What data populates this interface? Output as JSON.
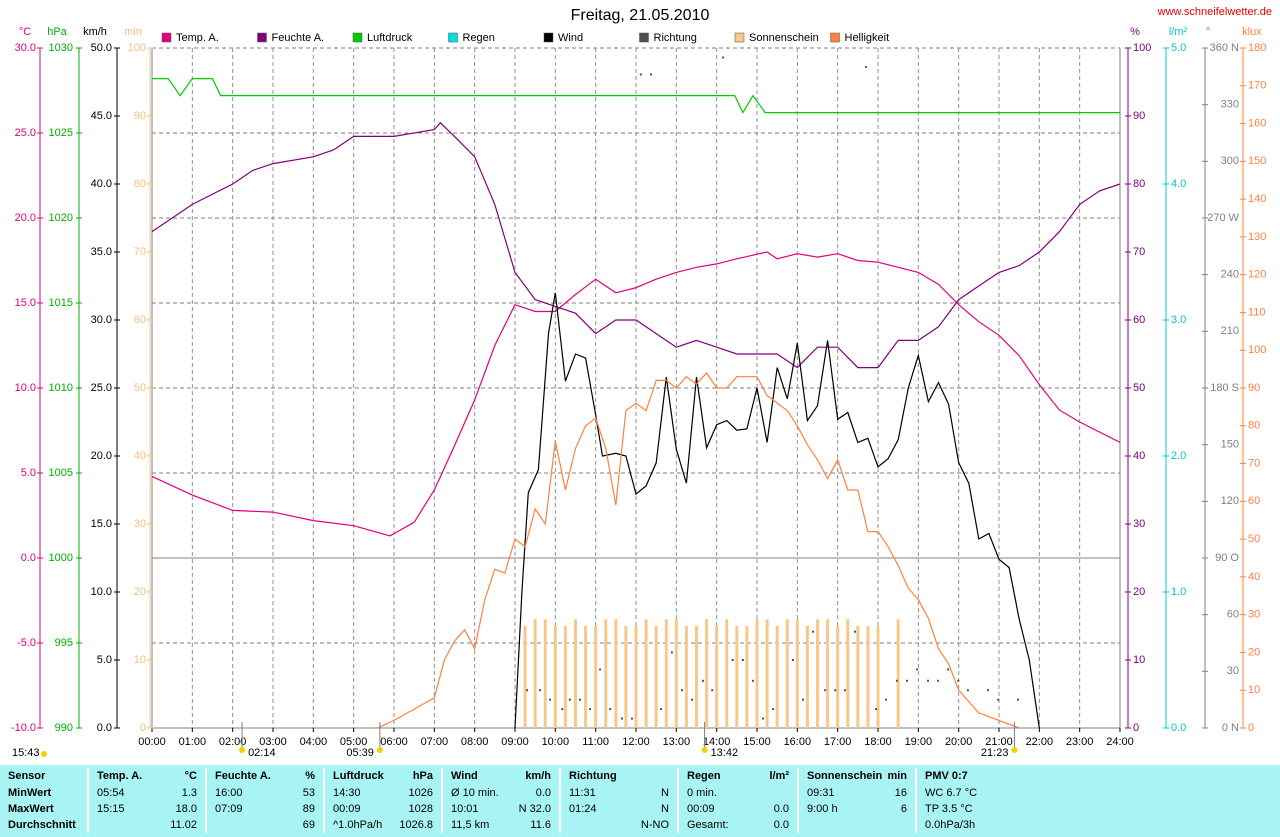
{
  "chart_data": {
    "type": "combo",
    "title": "Freitag, 21.05.2010",
    "source": "www.schneifelwetter.de",
    "xlim": [
      0,
      24
    ],
    "xticks": [
      {
        "value": 0,
        "label": "00:00"
      },
      {
        "value": 1,
        "label": "01:00"
      },
      {
        "value": 2,
        "label": "02:00"
      },
      {
        "value": 3,
        "label": "03:00"
      },
      {
        "value": 4,
        "label": "04:00"
      },
      {
        "value": 5,
        "label": "05:00"
      },
      {
        "value": 6,
        "label": "06:00"
      },
      {
        "value": 7,
        "label": "07:00"
      },
      {
        "value": 8,
        "label": "08:00"
      },
      {
        "value": 9,
        "label": "09:00"
      },
      {
        "value": 10,
        "label": "10:00"
      },
      {
        "value": 11,
        "label": "11:00"
      },
      {
        "value": 12,
        "label": "12:00"
      },
      {
        "value": 13,
        "label": "13:00"
      },
      {
        "value": 14,
        "label": "14:00"
      },
      {
        "value": 15,
        "label": "15:00"
      },
      {
        "value": 16,
        "label": "16:00"
      },
      {
        "value": 17,
        "label": "17:00"
      },
      {
        "value": 18,
        "label": "18:00"
      },
      {
        "value": 19,
        "label": "19:00"
      },
      {
        "value": 20,
        "label": "20:00"
      },
      {
        "value": 21,
        "label": "21:00"
      },
      {
        "value": 22,
        "label": "22:00"
      },
      {
        "value": 23,
        "label": "23:00"
      },
      {
        "value": 24,
        "label": "24:00"
      }
    ],
    "grid": true,
    "grid_axis": "temp",
    "axes": {
      "temp": {
        "label": "°C",
        "color": "#e0007f",
        "lim": [
          -10,
          30
        ],
        "ticks": [
          {
            "value": -10,
            "label": "-10.0"
          },
          {
            "value": -5,
            "label": "-5.0"
          },
          {
            "value": 0,
            "label": "0.0"
          },
          {
            "value": 5,
            "label": "5.0"
          },
          {
            "value": 10,
            "label": "10.0"
          },
          {
            "value": 15,
            "label": "15.0"
          },
          {
            "value": 20,
            "label": "20.0"
          },
          {
            "value": 25,
            "label": "25.0"
          },
          {
            "value": 30,
            "label": "30.0"
          }
        ]
      },
      "hpa": {
        "label": "hPa",
        "color": "#00b000",
        "lim": [
          990,
          1030
        ],
        "ticks": [
          990,
          995,
          1000,
          1005,
          1010,
          1015,
          1020,
          1025,
          1030
        ]
      },
      "wind": {
        "label": "km/h",
        "color": "#000000",
        "lim": [
          0,
          50
        ],
        "ticks": [
          {
            "value": 0,
            "label": "0.0"
          },
          {
            "value": 5,
            "label": "5.0"
          },
          {
            "value": 10,
            "label": "10.0"
          },
          {
            "value": 15,
            "label": "15.0"
          },
          {
            "value": 20,
            "label": "20.0"
          },
          {
            "value": 25,
            "label": "25.0"
          },
          {
            "value": 30,
            "label": "30.0"
          },
          {
            "value": 35,
            "label": "35.0"
          },
          {
            "value": 40,
            "label": "40.0"
          },
          {
            "value": 45,
            "label": "45.0"
          },
          {
            "value": 50,
            "label": "50.0"
          }
        ]
      },
      "min": {
        "label": "min",
        "color": "#f0c080",
        "lim": [
          0,
          100
        ],
        "ticks": [
          0,
          10,
          20,
          30,
          40,
          50,
          60,
          70,
          80,
          90,
          100
        ]
      },
      "hum": {
        "label": "%",
        "color": "#800080",
        "lim": [
          0,
          100
        ],
        "ticks": [
          0,
          10,
          20,
          30,
          40,
          50,
          60,
          70,
          80,
          90,
          100
        ]
      },
      "rain": {
        "label": "l/m²",
        "color": "#00c8c8",
        "lim": [
          0,
          5
        ],
        "ticks": [
          {
            "value": 0,
            "label": "0.0"
          },
          {
            "value": 1,
            "label": "1.0"
          },
          {
            "value": 2,
            "label": "2.0"
          },
          {
            "value": 3,
            "label": "3.0"
          },
          {
            "value": 4,
            "label": "4.0"
          },
          {
            "value": 5,
            "label": "5.0"
          }
        ]
      },
      "dir": {
        "label": "°",
        "color": "#808080",
        "lim": [
          0,
          360
        ],
        "ticks": [
          {
            "value": 0,
            "label": "0 N"
          },
          30,
          60,
          {
            "value": 90,
            "label": "90 O"
          },
          120,
          150,
          {
            "value": 180,
            "label": "180 S"
          },
          210,
          240,
          {
            "value": 270,
            "label": "270 W"
          },
          300,
          330,
          {
            "value": 360,
            "label": "360 N"
          }
        ]
      },
      "lux": {
        "label": "klux",
        "color": "#ff8040",
        "lim": [
          0,
          180
        ],
        "ticks": [
          0,
          10,
          20,
          30,
          40,
          50,
          60,
          70,
          80,
          90,
          100,
          110,
          120,
          130,
          140,
          150,
          160,
          170,
          180
        ]
      }
    },
    "series": [
      {
        "name": "Temp. A.",
        "type": "line",
        "axis": "temp",
        "color": "#e0007f",
        "x": [
          0,
          1,
          2,
          3,
          4,
          5,
          5.9,
          6.5,
          7,
          7.5,
          8,
          8.5,
          9,
          9.5,
          10,
          10.5,
          11,
          11.5,
          12,
          12.5,
          13,
          13.5,
          14,
          14.5,
          15.25,
          15.5,
          16,
          16.5,
          17,
          17.5,
          18,
          18.5,
          19,
          19.5,
          20,
          20.5,
          21,
          21.5,
          22,
          22.5,
          23,
          24
        ],
        "values": [
          4.8,
          3.7,
          2.8,
          2.7,
          2.2,
          1.9,
          1.3,
          2.1,
          4.0,
          6.6,
          9.3,
          12.5,
          14.9,
          14.5,
          14.5,
          15.5,
          16.4,
          15.6,
          15.9,
          16.4,
          16.8,
          17.1,
          17.3,
          17.6,
          18.0,
          17.6,
          17.9,
          17.7,
          17.9,
          17.5,
          17.4,
          17.1,
          16.8,
          16.1,
          14.9,
          13.9,
          13.1,
          11.9,
          10.2,
          8.7,
          8.0,
          6.8
        ]
      },
      {
        "name": "Feuchte A.",
        "type": "line",
        "axis": "hum",
        "color": "#800080",
        "x": [
          0,
          0.5,
          1,
          2,
          2.5,
          3,
          4,
          4.5,
          5,
          6,
          7,
          7.15,
          7.5,
          8,
          8.5,
          9,
          9.5,
          10,
          10.5,
          11,
          11.5,
          12,
          12.5,
          13,
          13.5,
          14,
          14.5,
          15,
          15.5,
          16,
          16.5,
          17,
          17.5,
          18,
          18.5,
          19,
          19.5,
          20,
          20.5,
          21,
          21.5,
          22,
          22.5,
          23,
          23.5,
          24
        ],
        "values": [
          73,
          75,
          77,
          80,
          82,
          83,
          84,
          85,
          87,
          87,
          88,
          89,
          87,
          84,
          77,
          67,
          63,
          62,
          61,
          58,
          60,
          60,
          58,
          56,
          57,
          56,
          55,
          55,
          55,
          53,
          56,
          56,
          53,
          53,
          57,
          57,
          59,
          63,
          65,
          67,
          68,
          70,
          73,
          77,
          79,
          80
        ]
      },
      {
        "name": "Luftdruck",
        "type": "line",
        "axis": "hpa",
        "color": "#00cc00",
        "x": [
          0,
          0.4,
          0.7,
          1.0,
          1.5,
          1.7,
          14.45,
          14.65,
          14.9,
          15.2,
          24
        ],
        "values": [
          1028.2,
          1028.2,
          1027.2,
          1028.2,
          1028.2,
          1027.2,
          1027.2,
          1026.2,
          1027.2,
          1026.2,
          1026.2
        ]
      },
      {
        "name": "Regen",
        "type": "line",
        "axis": "rain",
        "color": "#00e0e0",
        "x": [],
        "values": []
      },
      {
        "name": "Wind",
        "type": "line",
        "axis": "wind",
        "color": "#000000",
        "x": [
          9,
          9.17,
          9.33,
          9.58,
          9.83,
          10,
          10.25,
          10.5,
          10.75,
          11,
          11.17,
          11.5,
          11.75,
          12,
          12.25,
          12.5,
          12.75,
          13,
          13.25,
          13.5,
          13.75,
          14,
          14.25,
          14.5,
          14.75,
          15,
          15.25,
          15.5,
          15.75,
          16,
          16.25,
          16.5,
          16.75,
          17,
          17.25,
          17.5,
          17.75,
          18,
          18.25,
          18.5,
          18.75,
          19,
          19.25,
          19.5,
          19.75,
          20,
          20.25,
          20.5,
          20.75,
          21,
          21.25,
          21.5,
          21.75,
          22
        ],
        "values": [
          0,
          10,
          17.3,
          19,
          29,
          32,
          25.5,
          27.5,
          27.2,
          23,
          20,
          20.2,
          20,
          17.2,
          17.8,
          19.5,
          25.8,
          20.5,
          18,
          25.8,
          20.6,
          22.3,
          22.6,
          21.9,
          22,
          25,
          21,
          26.5,
          24.2,
          28.3,
          22.6,
          23.7,
          28.5,
          22.7,
          23.2,
          21,
          21.3,
          19.2,
          19.8,
          21.2,
          25,
          27.4,
          24,
          25.4,
          23.8,
          19.5,
          18,
          13.9,
          14.3,
          12.4,
          11.8,
          8,
          5,
          0
        ]
      },
      {
        "name": "Richtung",
        "type": "scatter",
        "axis": "dir",
        "color": "#505050",
        "x": [
          9.3,
          9.62,
          9.87,
          10.17,
          10.36,
          10.61,
          10.86,
          11.11,
          11.36,
          11.65,
          11.9,
          12.12,
          12.37,
          12.62,
          12.89,
          13.14,
          13.39,
          13.66,
          13.89,
          14.16,
          14.4,
          14.65,
          14.9,
          15.15,
          15.4,
          15.89,
          16.14,
          16.39,
          16.69,
          16.94,
          17.18,
          17.43,
          17.7,
          17.95,
          18.2,
          18.47,
          18.72,
          18.97,
          19.24,
          19.49,
          19.74,
          19.99,
          20.23,
          20.73,
          20.98,
          21.47
        ],
        "values": [
          20,
          20,
          15,
          10,
          15,
          15,
          10,
          31,
          10,
          5,
          5,
          346,
          346,
          10,
          40,
          20,
          15,
          25,
          20,
          355,
          36,
          36,
          25,
          5,
          10,
          36,
          15,
          51,
          20,
          20,
          20,
          51,
          350,
          10,
          15,
          25,
          25,
          31,
          25,
          25,
          31,
          25,
          20,
          20,
          15,
          15
        ]
      },
      {
        "name": "Sonnenschein",
        "type": "bar",
        "axis": "min",
        "color": "#f8c888",
        "x": [
          9.25,
          9.5,
          9.75,
          10,
          10.25,
          10.5,
          10.75,
          11,
          11.25,
          11.5,
          11.75,
          12,
          12.25,
          12.5,
          12.75,
          13,
          13.25,
          13.5,
          13.75,
          14,
          14.25,
          14.5,
          14.75,
          15,
          15.25,
          15.5,
          15.75,
          16,
          16.25,
          16.5,
          16.75,
          17,
          17.25,
          17.5,
          17.75,
          18,
          18.5
        ],
        "values": [
          15,
          16,
          16,
          15,
          15,
          16,
          15,
          15,
          16,
          16,
          15,
          15,
          16,
          15,
          16,
          16,
          15,
          15,
          16,
          15,
          16,
          15,
          15,
          16,
          16,
          15,
          16,
          16,
          15,
          16,
          16,
          15,
          16,
          15,
          15,
          15,
          16
        ]
      },
      {
        "name": "Helligkeit",
        "type": "line",
        "axis": "lux",
        "color": "#ff8040",
        "x": [
          5.6,
          6,
          6.5,
          7,
          7.25,
          7.5,
          7.75,
          8,
          8.25,
          8.5,
          8.75,
          9,
          9.25,
          9.5,
          9.75,
          10,
          10.25,
          10.5,
          10.75,
          11,
          11.25,
          11.5,
          11.75,
          12,
          12.25,
          12.5,
          12.75,
          13,
          13.25,
          13.5,
          13.75,
          14,
          14.25,
          14.5,
          14.75,
          15,
          15.25,
          15.5,
          15.75,
          16,
          16.25,
          16.5,
          16.75,
          17,
          17.25,
          17.5,
          17.75,
          18,
          18.25,
          18.5,
          18.75,
          19,
          19.25,
          19.5,
          19.75,
          20,
          20.5,
          21,
          21.5
        ],
        "values": [
          0,
          2,
          5,
          8,
          18,
          23,
          26,
          21,
          34,
          42,
          41,
          50,
          48,
          58,
          54,
          76,
          63,
          74,
          80,
          82,
          74,
          59,
          84,
          86,
          84,
          92,
          92,
          90,
          93,
          91,
          94,
          90,
          90,
          93,
          93,
          93,
          88,
          86,
          84,
          80,
          75,
          71,
          66,
          71,
          63,
          63,
          52,
          52,
          48,
          43,
          37,
          34,
          29,
          21,
          17,
          10,
          4,
          2,
          0
        ]
      }
    ],
    "moon_time": "15:43",
    "time_markers": [
      {
        "label": "02:14",
        "x": 2.2333
      },
      {
        "label": "05:39",
        "x": 5.65
      },
      {
        "label": "13:42",
        "x": 13.7
      },
      {
        "label": "21:23",
        "x": 21.3833
      }
    ]
  },
  "table": {
    "columns": [
      {
        "name": "Sensor"
      },
      {
        "name": "Temp. A.",
        "unit": "°C"
      },
      {
        "name": "Feuchte A.",
        "unit": "%"
      },
      {
        "name": "Luftdruck",
        "unit": "hPa"
      },
      {
        "name": "Wind",
        "unit": "km/h"
      },
      {
        "name": "Richtung"
      },
      {
        "name": "Regen",
        "unit": "l/m²"
      },
      {
        "name": "Sonnenschein",
        "unit": "min"
      },
      {
        "name": "PMV 0:7"
      }
    ],
    "rows": [
      {
        "label": "MinWert",
        "cells": [
          [
            "05:54",
            "1.3"
          ],
          [
            "16:00",
            "53"
          ],
          [
            "14:30",
            "1026"
          ],
          [
            "Ø 10 min.",
            "0.0"
          ],
          [
            "11:31",
            "N"
          ],
          [
            "0 min.",
            null
          ],
          [
            "09:31",
            "16"
          ],
          [
            "WC 6.7 °C",
            null
          ]
        ]
      },
      {
        "label": "MaxWert",
        "cells": [
          [
            "15:15",
            "18.0"
          ],
          [
            "07:09",
            "89"
          ],
          [
            "00:09",
            "1028"
          ],
          [
            "10:01",
            "N 32.0"
          ],
          [
            "01:24",
            "N"
          ],
          [
            "00:09",
            "0.0"
          ],
          [
            "9:00 h",
            "6"
          ],
          [
            "TP 3.5 °C",
            null
          ]
        ]
      },
      {
        "label": "Durchschnitt",
        "cells": [
          [
            null,
            "11.02"
          ],
          [
            null,
            "69"
          ],
          [
            "^1.0hPa/h",
            "1026.8"
          ],
          [
            "11,5 km",
            "11.6"
          ],
          [
            null,
            "N-NO"
          ],
          [
            "Gesamt:",
            "0.0"
          ],
          [
            null,
            null
          ],
          [
            "0.0hPa/3h",
            null
          ]
        ]
      }
    ]
  }
}
